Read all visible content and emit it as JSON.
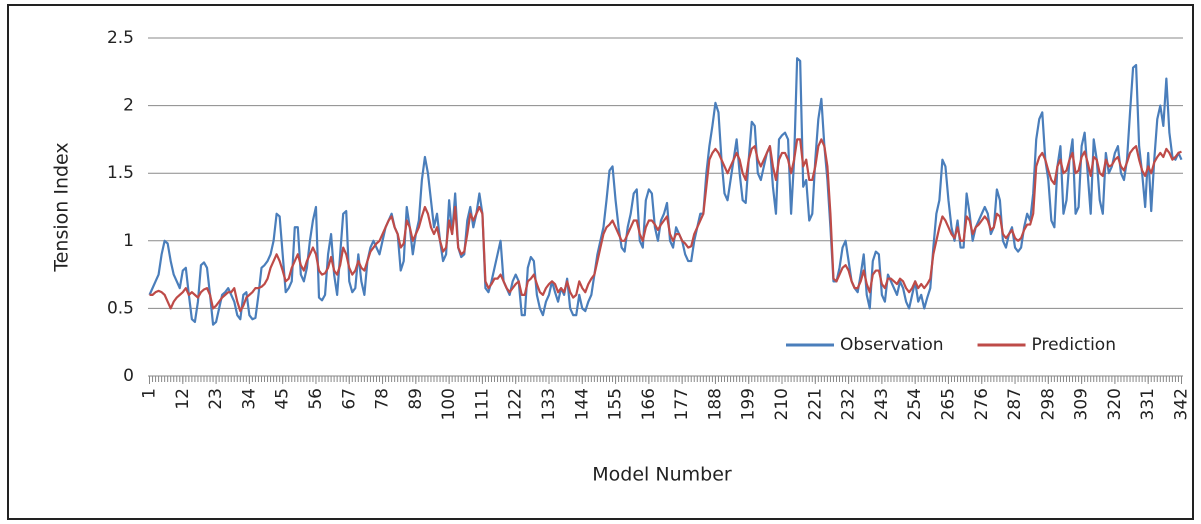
{
  "chart_data": {
    "type": "line",
    "x_label": "Model Number",
    "y_label": "Tension Index",
    "x": [
      1,
      2,
      3,
      4,
      5,
      6,
      7,
      8,
      9,
      10,
      11,
      12,
      13,
      14,
      15,
      16,
      17,
      18,
      19,
      20,
      21,
      22,
      23,
      24,
      25,
      26,
      27,
      28,
      29,
      30,
      31,
      32,
      33,
      34,
      35,
      36,
      37,
      38,
      39,
      40,
      41,
      42,
      43,
      44,
      45,
      46,
      47,
      48,
      49,
      50,
      51,
      52,
      53,
      54,
      55,
      56,
      57,
      58,
      59,
      60,
      61,
      62,
      63,
      64,
      65,
      66,
      67,
      68,
      69,
      70,
      71,
      72,
      73,
      74,
      75,
      76,
      77,
      78,
      79,
      80,
      81,
      82,
      83,
      84,
      85,
      86,
      87,
      88,
      89,
      90,
      91,
      92,
      93,
      94,
      95,
      96,
      97,
      98,
      99,
      100,
      101,
      102,
      103,
      104,
      105,
      106,
      107,
      108,
      109,
      110,
      111,
      112,
      113,
      114,
      115,
      116,
      117,
      118,
      119,
      120,
      121,
      122,
      123,
      124,
      125,
      126,
      127,
      128,
      129,
      130,
      131,
      132,
      133,
      134,
      135,
      136,
      137,
      138,
      139,
      140,
      141,
      142,
      143,
      144,
      145,
      146,
      147,
      148,
      149,
      150,
      151,
      152,
      153,
      154,
      155,
      156,
      157,
      158,
      159,
      160,
      161,
      162,
      163,
      164,
      165,
      166,
      167,
      168,
      169,
      170,
      171,
      172,
      173,
      174,
      175,
      176,
      177,
      178,
      179,
      180,
      181,
      182,
      183,
      184,
      185,
      186,
      187,
      188,
      189,
      190,
      191,
      192,
      193,
      194,
      195,
      196,
      197,
      198,
      199,
      200,
      201,
      202,
      203,
      204,
      205,
      206,
      207,
      208,
      209,
      210,
      211,
      212,
      213,
      214,
      215,
      216,
      217,
      218,
      219,
      220,
      221,
      222,
      223,
      224,
      225,
      226,
      227,
      228,
      229,
      230,
      231,
      232,
      233,
      234,
      235,
      236,
      237,
      238,
      239,
      240,
      241,
      242,
      243,
      244,
      245,
      246,
      247,
      248,
      249,
      250,
      251,
      252,
      253,
      254,
      255,
      256,
      257,
      258,
      259,
      260,
      261,
      262,
      263,
      264,
      265,
      266,
      267,
      268,
      269,
      270,
      271,
      272,
      273,
      274,
      275,
      276,
      277,
      278,
      279,
      280,
      281,
      282,
      283,
      284,
      285,
      286,
      287,
      288,
      289,
      290,
      291,
      292,
      293,
      294,
      295,
      296,
      297,
      298,
      299,
      300,
      301,
      302,
      303,
      304,
      305,
      306,
      307,
      308,
      309,
      310,
      311,
      312,
      313,
      314,
      315,
      316,
      317,
      318,
      319,
      320,
      321,
      322,
      323,
      324,
      325,
      326,
      327,
      328,
      329,
      330,
      331,
      332,
      333,
      334,
      335,
      336,
      337,
      338,
      339,
      340,
      341,
      342
    ],
    "xlim": [
      0.5,
      342.5
    ],
    "xticks": [
      1,
      12,
      23,
      34,
      45,
      56,
      67,
      78,
      89,
      100,
      111,
      122,
      133,
      144,
      155,
      166,
      177,
      188,
      199,
      210,
      221,
      232,
      243,
      254,
      265,
      276,
      287,
      298,
      309,
      320,
      331,
      342
    ],
    "ylim": [
      0,
      2.5
    ],
    "yticks": [
      0,
      0.5,
      1,
      1.5,
      2,
      2.5
    ],
    "grid": true,
    "legend": "lower right",
    "series": [
      {
        "name": "Observation",
        "color": "#4a7ebb",
        "values": [
          0.6,
          0.65,
          0.7,
          0.75,
          0.9,
          1.0,
          0.98,
          0.85,
          0.75,
          0.7,
          0.65,
          0.78,
          0.8,
          0.6,
          0.42,
          0.4,
          0.55,
          0.82,
          0.84,
          0.8,
          0.6,
          0.38,
          0.4,
          0.5,
          0.6,
          0.62,
          0.65,
          0.6,
          0.55,
          0.45,
          0.42,
          0.6,
          0.62,
          0.45,
          0.42,
          0.43,
          0.6,
          0.8,
          0.82,
          0.85,
          0.9,
          1.0,
          1.2,
          1.18,
          0.9,
          0.62,
          0.65,
          0.7,
          1.1,
          1.1,
          0.75,
          0.7,
          0.8,
          1.0,
          1.15,
          1.25,
          0.58,
          0.56,
          0.6,
          0.9,
          1.05,
          0.75,
          0.6,
          0.9,
          1.2,
          1.22,
          0.7,
          0.62,
          0.65,
          0.9,
          0.7,
          0.6,
          0.85,
          0.95,
          1.0,
          0.95,
          0.9,
          1.0,
          1.1,
          1.15,
          1.2,
          1.1,
          1.05,
          0.78,
          0.85,
          1.25,
          1.1,
          0.9,
          1.05,
          1.15,
          1.45,
          1.62,
          1.5,
          1.3,
          1.1,
          1.2,
          1.0,
          0.85,
          0.9,
          1.3,
          1.05,
          1.35,
          0.95,
          0.88,
          0.9,
          1.15,
          1.25,
          1.1,
          1.2,
          1.35,
          1.2,
          0.65,
          0.62,
          0.7,
          0.8,
          0.9,
          1.0,
          0.7,
          0.65,
          0.6,
          0.7,
          0.75,
          0.7,
          0.45,
          0.45,
          0.8,
          0.88,
          0.85,
          0.6,
          0.5,
          0.45,
          0.55,
          0.6,
          0.7,
          0.62,
          0.55,
          0.65,
          0.6,
          0.72,
          0.5,
          0.45,
          0.45,
          0.6,
          0.5,
          0.48,
          0.55,
          0.6,
          0.75,
          0.9,
          1.0,
          1.1,
          1.3,
          1.52,
          1.55,
          1.3,
          1.1,
          0.95,
          0.92,
          1.1,
          1.2,
          1.35,
          1.38,
          1.0,
          0.95,
          1.3,
          1.38,
          1.35,
          1.1,
          1.0,
          1.15,
          1.2,
          1.28,
          1.0,
          0.95,
          1.1,
          1.05,
          1.0,
          0.9,
          0.85,
          0.85,
          1.0,
          1.1,
          1.2,
          1.2,
          1.5,
          1.7,
          1.85,
          2.02,
          1.95,
          1.6,
          1.35,
          1.3,
          1.45,
          1.6,
          1.75,
          1.5,
          1.3,
          1.28,
          1.6,
          1.88,
          1.85,
          1.5,
          1.45,
          1.55,
          1.65,
          1.7,
          1.4,
          1.2,
          1.75,
          1.78,
          1.8,
          1.75,
          1.2,
          1.6,
          2.35,
          2.33,
          1.4,
          1.45,
          1.15,
          1.2,
          1.6,
          1.9,
          2.05,
          1.7,
          1.45,
          1.1,
          0.7,
          0.7,
          0.8,
          0.95,
          1.0,
          0.85,
          0.7,
          0.65,
          0.62,
          0.75,
          0.9,
          0.6,
          0.5,
          0.85,
          0.92,
          0.9,
          0.6,
          0.55,
          0.75,
          0.7,
          0.65,
          0.6,
          0.7,
          0.65,
          0.55,
          0.5,
          0.6,
          0.7,
          0.55,
          0.6,
          0.5,
          0.58,
          0.65,
          0.95,
          1.2,
          1.3,
          1.6,
          1.55,
          1.3,
          1.1,
          1.0,
          1.15,
          0.95,
          0.95,
          1.35,
          1.2,
          1.0,
          1.1,
          1.15,
          1.2,
          1.25,
          1.2,
          1.05,
          1.1,
          1.38,
          1.3,
          1.0,
          0.95,
          1.05,
          1.1,
          0.95,
          0.92,
          0.95,
          1.1,
          1.2,
          1.15,
          1.35,
          1.75,
          1.9,
          1.95,
          1.6,
          1.45,
          1.15,
          1.1,
          1.55,
          1.7,
          1.2,
          1.3,
          1.6,
          1.75,
          1.2,
          1.25,
          1.7,
          1.8,
          1.5,
          1.2,
          1.75,
          1.6,
          1.3,
          1.2,
          1.65,
          1.5,
          1.55,
          1.65,
          1.7,
          1.5,
          1.45,
          1.6,
          1.95,
          2.28,
          2.3,
          1.7,
          1.5,
          1.25,
          1.65,
          1.22,
          1.6,
          1.9,
          2.0,
          1.85,
          2.2,
          1.8,
          1.62,
          1.6,
          1.65,
          1.6
        ]
      },
      {
        "name": "Prediction",
        "color": "#be4b48",
        "values": [
          0.6,
          0.6,
          0.62,
          0.63,
          0.62,
          0.6,
          0.55,
          0.5,
          0.55,
          0.58,
          0.6,
          0.62,
          0.65,
          0.6,
          0.62,
          0.6,
          0.58,
          0.62,
          0.64,
          0.65,
          0.6,
          0.5,
          0.52,
          0.55,
          0.58,
          0.6,
          0.62,
          0.62,
          0.65,
          0.55,
          0.48,
          0.52,
          0.58,
          0.6,
          0.62,
          0.65,
          0.65,
          0.66,
          0.68,
          0.72,
          0.8,
          0.85,
          0.9,
          0.85,
          0.78,
          0.7,
          0.72,
          0.8,
          0.85,
          0.9,
          0.82,
          0.78,
          0.85,
          0.9,
          0.95,
          0.9,
          0.78,
          0.75,
          0.76,
          0.8,
          0.88,
          0.78,
          0.75,
          0.82,
          0.95,
          0.9,
          0.8,
          0.75,
          0.78,
          0.85,
          0.8,
          0.78,
          0.85,
          0.92,
          0.95,
          0.98,
          1.0,
          1.05,
          1.1,
          1.15,
          1.18,
          1.1,
          1.05,
          0.95,
          0.98,
          1.15,
          1.1,
          1.0,
          1.05,
          1.1,
          1.18,
          1.25,
          1.2,
          1.1,
          1.05,
          1.1,
          1.0,
          0.92,
          0.95,
          1.15,
          1.05,
          1.25,
          0.95,
          0.9,
          0.92,
          1.05,
          1.2,
          1.15,
          1.2,
          1.25,
          1.2,
          0.7,
          0.65,
          0.68,
          0.72,
          0.72,
          0.75,
          0.7,
          0.65,
          0.62,
          0.65,
          0.68,
          0.7,
          0.6,
          0.6,
          0.7,
          0.72,
          0.75,
          0.68,
          0.62,
          0.6,
          0.65,
          0.68,
          0.7,
          0.68,
          0.62,
          0.65,
          0.62,
          0.7,
          0.62,
          0.58,
          0.6,
          0.7,
          0.65,
          0.62,
          0.68,
          0.72,
          0.75,
          0.85,
          0.95,
          1.05,
          1.1,
          1.12,
          1.15,
          1.1,
          1.05,
          1.0,
          1.0,
          1.05,
          1.1,
          1.15,
          1.15,
          1.05,
          1.0,
          1.1,
          1.15,
          1.15,
          1.12,
          1.08,
          1.12,
          1.15,
          1.18,
          1.05,
          1.0,
          1.05,
          1.05,
          1.0,
          0.98,
          0.95,
          0.96,
          1.05,
          1.1,
          1.15,
          1.2,
          1.4,
          1.6,
          1.65,
          1.68,
          1.65,
          1.6,
          1.55,
          1.5,
          1.55,
          1.6,
          1.65,
          1.6,
          1.5,
          1.45,
          1.6,
          1.68,
          1.7,
          1.6,
          1.55,
          1.6,
          1.65,
          1.7,
          1.55,
          1.45,
          1.6,
          1.65,
          1.65,
          1.6,
          1.5,
          1.6,
          1.75,
          1.75,
          1.55,
          1.6,
          1.45,
          1.45,
          1.55,
          1.7,
          1.75,
          1.7,
          1.55,
          1.2,
          0.72,
          0.7,
          0.75,
          0.8,
          0.82,
          0.78,
          0.7,
          0.65,
          0.65,
          0.7,
          0.78,
          0.68,
          0.62,
          0.75,
          0.78,
          0.78,
          0.68,
          0.65,
          0.72,
          0.72,
          0.7,
          0.68,
          0.72,
          0.7,
          0.65,
          0.62,
          0.65,
          0.7,
          0.65,
          0.68,
          0.65,
          0.68,
          0.72,
          0.9,
          1.0,
          1.1,
          1.18,
          1.15,
          1.1,
          1.05,
          1.02,
          1.1,
          1.0,
          1.0,
          1.18,
          1.15,
          1.05,
          1.1,
          1.12,
          1.15,
          1.18,
          1.15,
          1.08,
          1.1,
          1.2,
          1.18,
          1.05,
          1.02,
          1.05,
          1.08,
          1.02,
          1.0,
          1.02,
          1.08,
          1.12,
          1.12,
          1.2,
          1.55,
          1.62,
          1.65,
          1.6,
          1.52,
          1.45,
          1.42,
          1.55,
          1.6,
          1.5,
          1.52,
          1.6,
          1.65,
          1.5,
          1.52,
          1.62,
          1.66,
          1.58,
          1.48,
          1.62,
          1.6,
          1.5,
          1.48,
          1.6,
          1.55,
          1.56,
          1.6,
          1.62,
          1.55,
          1.52,
          1.58,
          1.65,
          1.68,
          1.7,
          1.6,
          1.52,
          1.48,
          1.55,
          1.5,
          1.58,
          1.62,
          1.65,
          1.62,
          1.68,
          1.65,
          1.6,
          1.62,
          1.65,
          1.66
        ]
      }
    ]
  }
}
